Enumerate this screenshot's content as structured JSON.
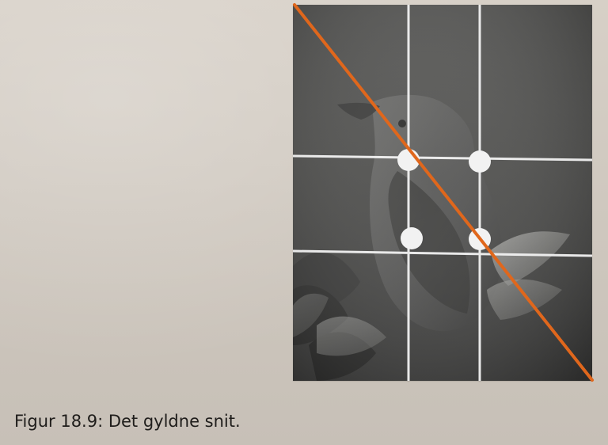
{
  "book_page": {
    "figure_caption": "Figur 18.9: Det gyldne snit."
  },
  "photo": {
    "subject_icon": "bird-photo",
    "grid_lines": 4,
    "focus_points": 4,
    "accent_line_color": "#e0671c",
    "grid_color": "#f2f2f2",
    "photo_tone": "#4b4b4b"
  }
}
